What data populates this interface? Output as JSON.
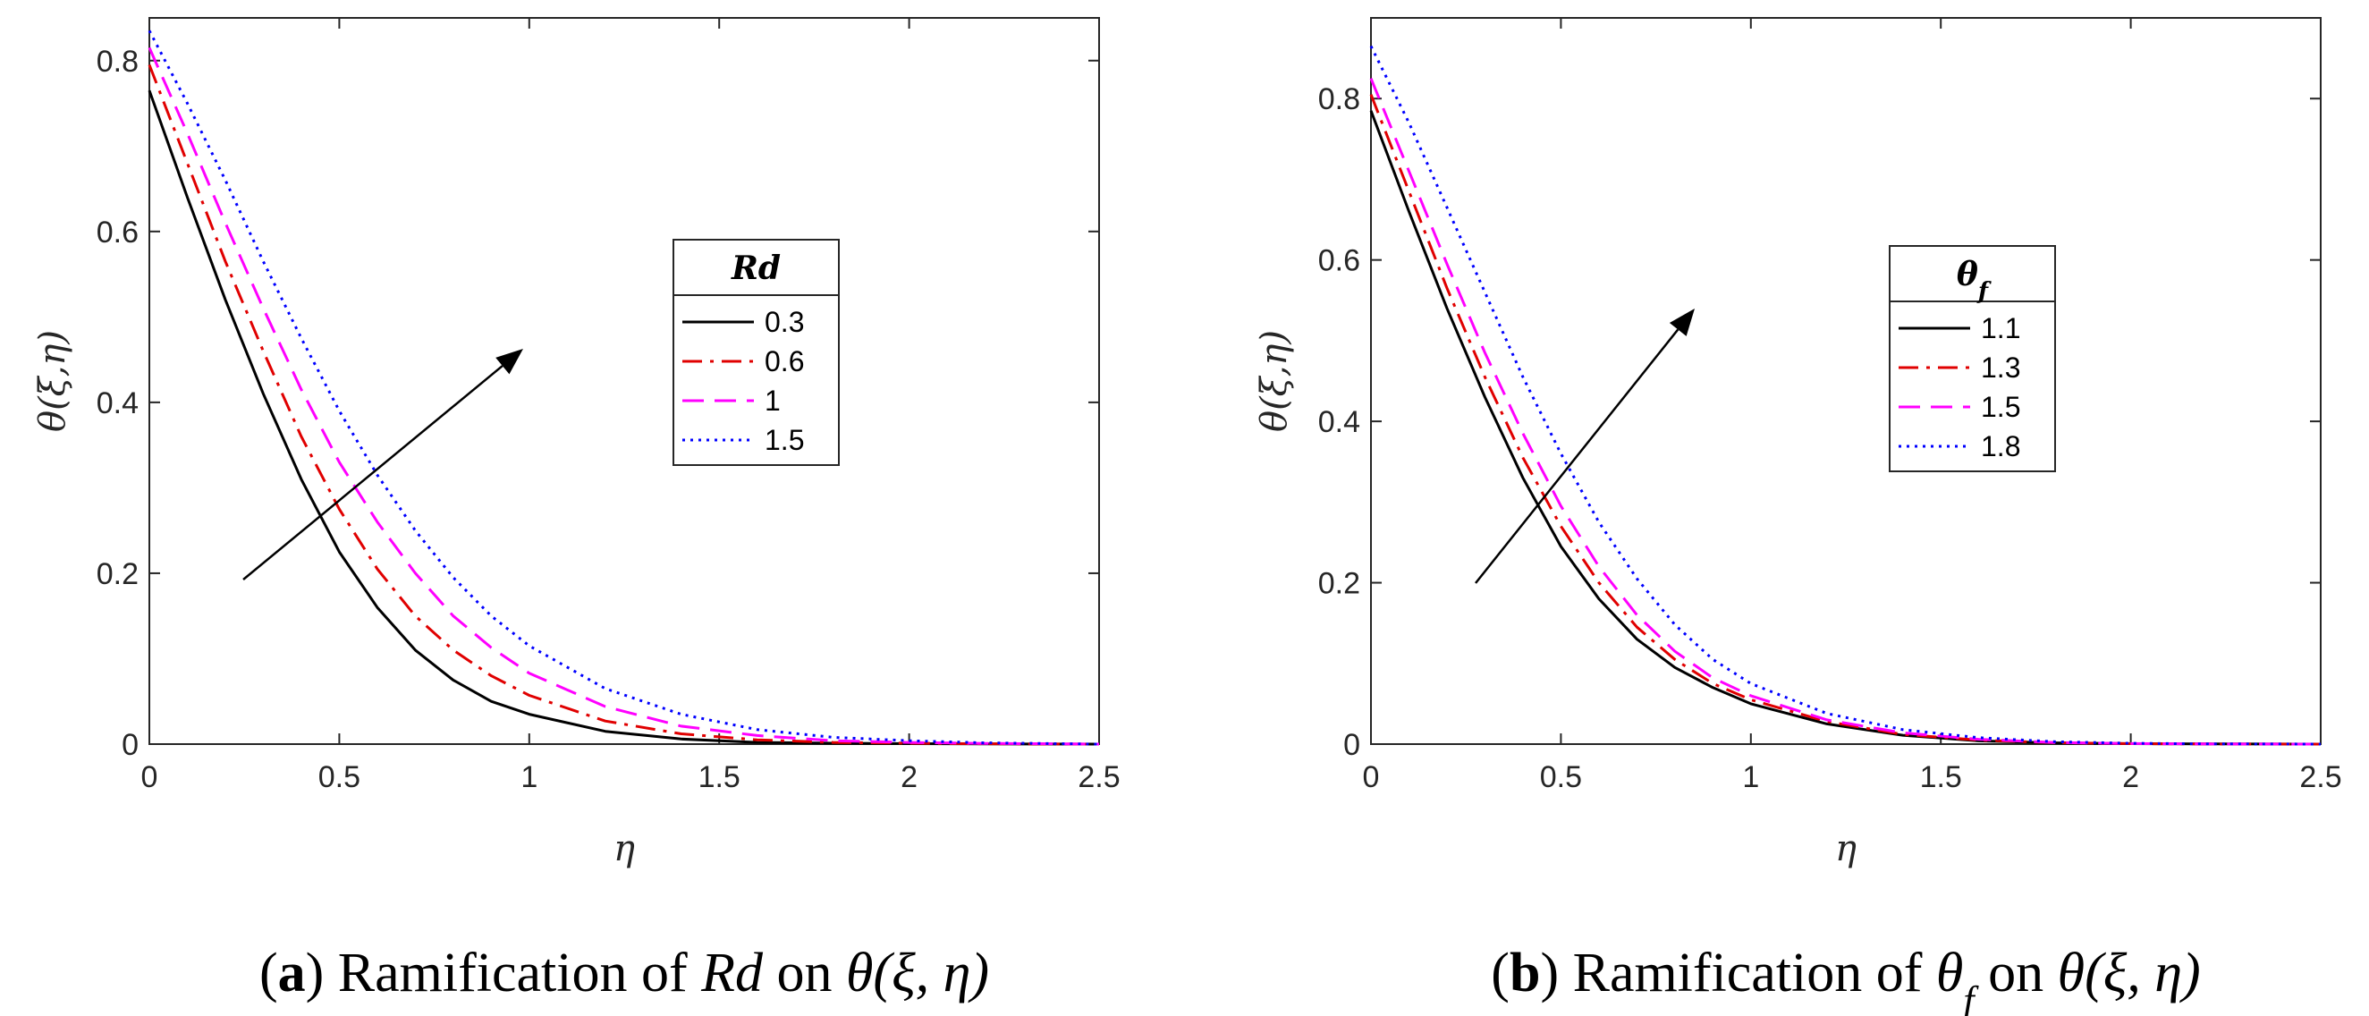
{
  "chart_data": [
    {
      "type": "line",
      "caption": {
        "letter": "a",
        "text": "Ramification of",
        "var": "Rd",
        "mid": "on",
        "func": "θ(ξ, η)"
      },
      "xlabel": "η",
      "ylabel": "θ(ξ,η)",
      "xlim": [
        0,
        2.5
      ],
      "ylim": [
        0,
        0.85
      ],
      "xticks": [
        0,
        0.5,
        1,
        1.5,
        2,
        2.5
      ],
      "yticks": [
        0,
        0.2,
        0.4,
        0.6,
        0.8
      ],
      "legend_title": "Rd",
      "legend_position": "center-right",
      "x": [
        0,
        0.1,
        0.2,
        0.3,
        0.4,
        0.5,
        0.6,
        0.7,
        0.8,
        0.9,
        1.0,
        1.2,
        1.4,
        1.6,
        1.8,
        2.0,
        2.2,
        2.5
      ],
      "series": [
        {
          "name": "0.3",
          "color": "#000000",
          "dash": "solid",
          "values": [
            0.765,
            0.64,
            0.52,
            0.41,
            0.31,
            0.225,
            0.16,
            0.11,
            0.075,
            0.05,
            0.035,
            0.015,
            0.006,
            0.002,
            0.001,
            0.0005,
            0.0002,
            0.0
          ]
        },
        {
          "name": "0.6",
          "color": "#e00000",
          "dash": "dashdot",
          "values": [
            0.795,
            0.68,
            0.565,
            0.46,
            0.36,
            0.275,
            0.205,
            0.15,
            0.11,
            0.08,
            0.057,
            0.027,
            0.012,
            0.005,
            0.002,
            0.001,
            0.0004,
            0.0
          ]
        },
        {
          "name": "1",
          "color": "#ff00ff",
          "dash": "dashed",
          "values": [
            0.815,
            0.715,
            0.61,
            0.51,
            0.415,
            0.33,
            0.26,
            0.2,
            0.15,
            0.113,
            0.083,
            0.044,
            0.021,
            0.01,
            0.004,
            0.002,
            0.0008,
            0.0
          ]
        },
        {
          "name": "1.5",
          "color": "#0000ff",
          "dash": "dotted",
          "values": [
            0.835,
            0.75,
            0.66,
            0.565,
            0.475,
            0.39,
            0.315,
            0.25,
            0.195,
            0.15,
            0.115,
            0.065,
            0.035,
            0.017,
            0.008,
            0.004,
            0.0015,
            0.0
          ]
        }
      ]
    },
    {
      "type": "line",
      "caption": {
        "letter": "b",
        "text": "Ramification of",
        "var": "θ",
        "var_sub": "f",
        "mid": "on",
        "func": "θ(ξ, η)"
      },
      "xlabel": "η",
      "ylabel": "θ(ξ,η)",
      "xlim": [
        0,
        2.5
      ],
      "ylim": [
        0,
        0.9
      ],
      "xticks": [
        0,
        0.5,
        1,
        1.5,
        2,
        2.5
      ],
      "yticks": [
        0,
        0.2,
        0.4,
        0.6,
        0.8
      ],
      "legend_title": "θ",
      "legend_title_sub": "f",
      "legend_position": "center-right",
      "x": [
        0,
        0.1,
        0.2,
        0.3,
        0.4,
        0.5,
        0.6,
        0.7,
        0.8,
        0.9,
        1.0,
        1.2,
        1.4,
        1.6,
        1.8,
        2.0,
        2.2,
        2.5
      ],
      "series": [
        {
          "name": "1.1",
          "color": "#000000",
          "dash": "solid",
          "values": [
            0.785,
            0.66,
            0.54,
            0.43,
            0.33,
            0.245,
            0.18,
            0.13,
            0.095,
            0.07,
            0.05,
            0.025,
            0.011,
            0.004,
            0.0015,
            0.0005,
            0.0002,
            0.0
          ]
        },
        {
          "name": "1.3",
          "color": "#e00000",
          "dash": "dashdot",
          "values": [
            0.805,
            0.685,
            0.565,
            0.455,
            0.355,
            0.27,
            0.2,
            0.145,
            0.105,
            0.075,
            0.055,
            0.028,
            0.012,
            0.005,
            0.0018,
            0.0006,
            0.0002,
            0.0
          ]
        },
        {
          "name": "1.5",
          "color": "#ff00ff",
          "dash": "dashed",
          "values": [
            0.825,
            0.71,
            0.595,
            0.485,
            0.385,
            0.295,
            0.22,
            0.16,
            0.115,
            0.082,
            0.06,
            0.03,
            0.014,
            0.006,
            0.002,
            0.0007,
            0.0002,
            0.0
          ]
        },
        {
          "name": "1.8",
          "color": "#0000ff",
          "dash": "dotted",
          "values": [
            0.865,
            0.77,
            0.665,
            0.56,
            0.455,
            0.36,
            0.275,
            0.205,
            0.148,
            0.105,
            0.075,
            0.038,
            0.018,
            0.008,
            0.003,
            0.001,
            0.0003,
            0.0
          ]
        }
      ]
    }
  ]
}
